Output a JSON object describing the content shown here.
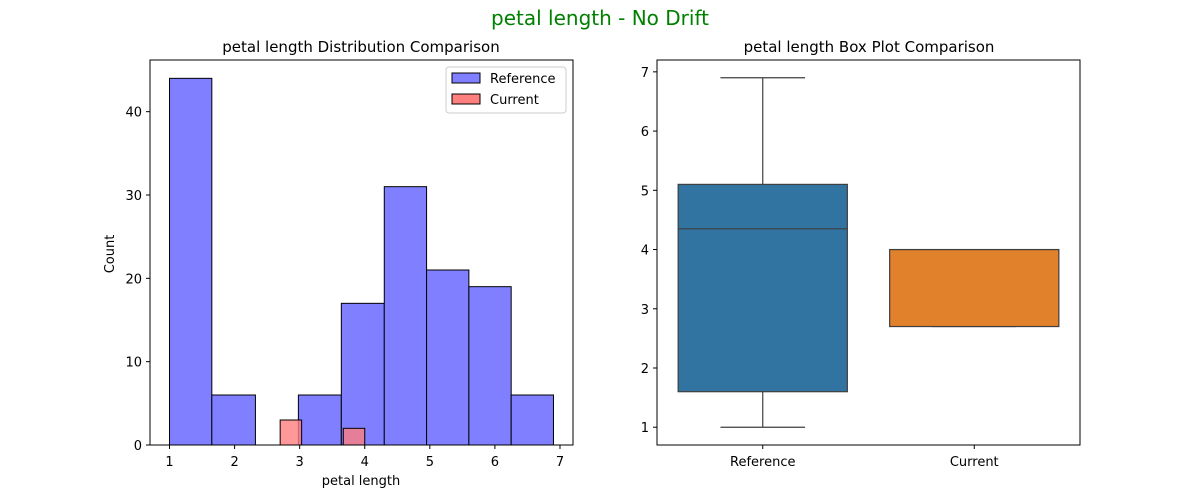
{
  "figure": {
    "suptitle": "petal length - No Drift",
    "suptitle_color": "#008000"
  },
  "chart_data": [
    {
      "type": "histogram",
      "title": "petal length Distribution Comparison",
      "xlabel": "petal length",
      "ylabel": "Count",
      "xlim": [
        0.7,
        7.2
      ],
      "ylim": [
        0,
        46.2
      ],
      "xticks": [
        1,
        2,
        3,
        4,
        5,
        6,
        7
      ],
      "yticks": [
        0,
        10,
        20,
        30,
        40
      ],
      "grid": false,
      "legend_position": "top-right",
      "series": [
        {
          "name": "Reference",
          "color": "#7f7fff",
          "bins": [
            {
              "x0": 1.0,
              "x1": 1.65,
              "count": 44
            },
            {
              "x0": 1.65,
              "x1": 2.32,
              "count": 6
            },
            {
              "x0": 2.32,
              "x1": 2.98,
              "count": 0
            },
            {
              "x0": 2.98,
              "x1": 3.64,
              "count": 6
            },
            {
              "x0": 3.64,
              "x1": 4.3,
              "count": 17
            },
            {
              "x0": 4.3,
              "x1": 4.95,
              "count": 31
            },
            {
              "x0": 4.95,
              "x1": 5.6,
              "count": 21
            },
            {
              "x0": 5.6,
              "x1": 6.25,
              "count": 19
            },
            {
              "x0": 6.25,
              "x1": 6.9,
              "count": 6
            }
          ]
        },
        {
          "name": "Current",
          "color": "#ff7f7f",
          "bins": [
            {
              "x0": 2.7,
              "x1": 3.03,
              "count": 3
            },
            {
              "x0": 3.67,
              "x1": 4.0,
              "count": 2
            }
          ]
        }
      ]
    },
    {
      "type": "box",
      "title": "petal length Box Plot Comparison",
      "categories": [
        "Reference",
        "Current"
      ],
      "ylim": [
        0.7,
        7.2
      ],
      "yticks": [
        1,
        2,
        3,
        4,
        5,
        6,
        7
      ],
      "grid": false,
      "boxes": [
        {
          "category": "Reference",
          "min": 1.0,
          "q1": 1.6,
          "median": 4.35,
          "q3": 5.1,
          "max": 6.9,
          "color": "#3274a1"
        },
        {
          "category": "Current",
          "min": 2.7,
          "q1": 2.7,
          "median": 4.0,
          "q3": 4.0,
          "max": 4.0,
          "color": "#e1812c"
        }
      ]
    }
  ]
}
